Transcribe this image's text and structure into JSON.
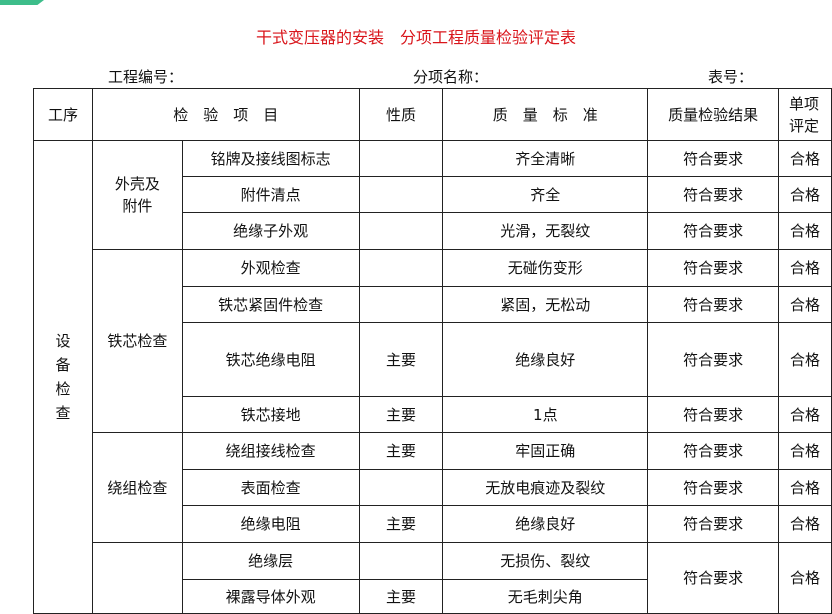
{
  "title": "干式变压器的安装　分项工程质量检验评定表",
  "meta": {
    "project_no": "工程编号：",
    "item_name": "分项名称：",
    "table_no": "表号："
  },
  "headers": {
    "process": "工序",
    "item": "检　验　项　目",
    "nature": "性质",
    "standard": "质　量　标　准",
    "result": "质量检验结果",
    "rating_1": "单项",
    "rating_2": "评定"
  },
  "process": [
    "设",
    "备",
    "检",
    "查"
  ],
  "groups": {
    "shell": [
      "外壳及",
      "附件"
    ],
    "core": "铁芯检查",
    "winding": "绕组检查"
  },
  "rows": [
    {
      "item": "铭牌及接线图标志",
      "nature": "",
      "standard": "齐全清晰",
      "result": "符合要求",
      "rating": "合格"
    },
    {
      "item": "附件清点",
      "nature": "",
      "standard": "齐全",
      "result": "符合要求",
      "rating": "合格"
    },
    {
      "item": "绝缘子外观",
      "nature": "",
      "standard": "光滑，无裂纹",
      "result": "符合要求",
      "rating": "合格"
    },
    {
      "item": "外观检查",
      "nature": "",
      "standard": "无碰伤变形",
      "result": "符合要求",
      "rating": "合格"
    },
    {
      "item": "铁芯紧固件检查",
      "nature": "",
      "standard": "紧固，无松动",
      "result": "符合要求",
      "rating": "合格"
    },
    {
      "item": "铁芯绝缘电阻",
      "nature": "主要",
      "standard": "绝缘良好",
      "result": "符合要求",
      "rating": "合格"
    },
    {
      "item": "铁芯接地",
      "nature": "主要",
      "standard": "1点",
      "result": "符合要求",
      "rating": "合格"
    },
    {
      "item": "绕组接线检查",
      "nature": "主要",
      "standard": "牢固正确",
      "result": "符合要求",
      "rating": "合格"
    },
    {
      "item": "表面检查",
      "nature": "",
      "standard": "无放电痕迹及裂纹",
      "result": "符合要求",
      "rating": "合格"
    },
    {
      "item": "绝缘电阻",
      "nature": "主要",
      "standard": "绝缘良好",
      "result": "符合要求",
      "rating": "合格"
    },
    {
      "item": "绝缘层",
      "nature": "",
      "standard": "无损伤、裂纹",
      "result": "符合要求",
      "rating": "合格"
    },
    {
      "item": "裸露导体外观",
      "nature": "主要",
      "standard": "无毛刺尖角"
    }
  ]
}
